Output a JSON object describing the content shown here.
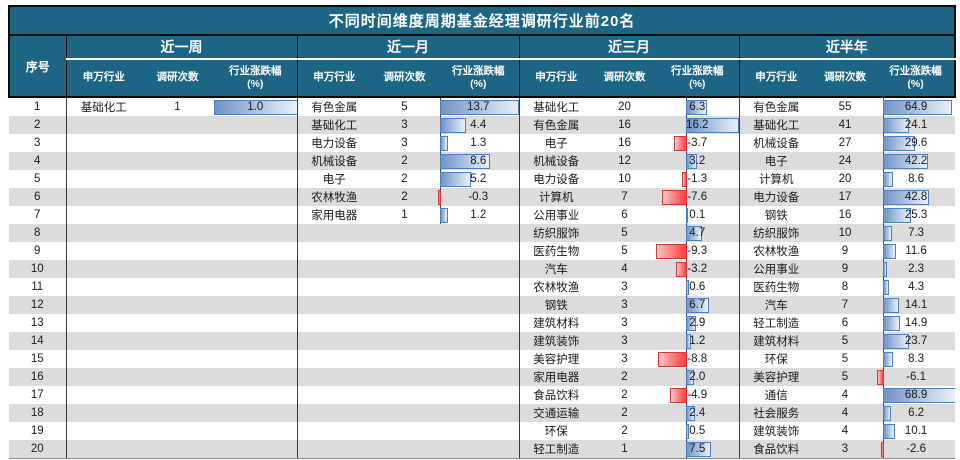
{
  "colors": {
    "header_bg": "#1C6585",
    "header_text": "#ffffff",
    "row_stripe": "#DCDCDC",
    "bar_positive_fill": "#7094C6",
    "bar_positive_border": "#4E7DC0",
    "bar_negative_fill": "#FF3A3A",
    "bar_negative_border": "#D03A3A",
    "body_text": "#1a1a1a"
  },
  "chart_data": {
    "type": "table",
    "title": "不同时间维度周期基金经理调研行业前20名",
    "index_header": "序号",
    "sub_headers": {
      "industry": "申万行业",
      "count": "调研次数",
      "change_line1": "行业涨跌幅",
      "change_line2": "(%)"
    },
    "row_count": 20,
    "row_numbers": [
      1,
      2,
      3,
      4,
      5,
      6,
      7,
      8,
      9,
      10,
      11,
      12,
      13,
      14,
      15,
      16,
      17,
      18,
      19,
      20
    ],
    "bar_axis_note": "Excel-style data bars; per-panel axis at -min/(max-min); blue=positive, red=negative",
    "panels": [
      {
        "period": "近一周",
        "rows": [
          [
            "基础化工",
            1,
            1.0
          ]
        ]
      },
      {
        "period": "近一月",
        "rows": [
          [
            "有色金属",
            5,
            13.7
          ],
          [
            "基础化工",
            3,
            4.4
          ],
          [
            "电力设备",
            3,
            1.3
          ],
          [
            "机械设备",
            2,
            8.6
          ],
          [
            "电子",
            2,
            5.2
          ],
          [
            "农林牧渔",
            2,
            -0.3
          ],
          [
            "家用电器",
            1,
            1.2
          ]
        ]
      },
      {
        "period": "近三月",
        "rows": [
          [
            "基础化工",
            20,
            6.3
          ],
          [
            "有色金属",
            16,
            16.2
          ],
          [
            "电子",
            16,
            -3.7
          ],
          [
            "机械设备",
            12,
            3.2
          ],
          [
            "电力设备",
            10,
            -1.3
          ],
          [
            "计算机",
            7,
            -7.6
          ],
          [
            "公用事业",
            6,
            0.1
          ],
          [
            "纺织服饰",
            5,
            4.7
          ],
          [
            "医药生物",
            5,
            -9.3
          ],
          [
            "汽车",
            4,
            -3.2
          ],
          [
            "农林牧渔",
            3,
            0.6
          ],
          [
            "钢铁",
            3,
            6.7
          ],
          [
            "建筑材料",
            3,
            2.9
          ],
          [
            "建筑装饰",
            3,
            1.2
          ],
          [
            "美容护理",
            3,
            -8.8
          ],
          [
            "家用电器",
            2,
            2.0
          ],
          [
            "食品饮料",
            2,
            -4.9
          ],
          [
            "交通运输",
            2,
            2.4
          ],
          [
            "环保",
            2,
            0.5
          ],
          [
            "轻工制造",
            1,
            7.5
          ]
        ]
      },
      {
        "period": "近半年",
        "rows": [
          [
            "有色金属",
            55,
            64.9
          ],
          [
            "基础化工",
            41,
            24.1
          ],
          [
            "机械设备",
            27,
            29.6
          ],
          [
            "电子",
            24,
            42.2
          ],
          [
            "计算机",
            20,
            8.6
          ],
          [
            "电力设备",
            17,
            42.8
          ],
          [
            "钢铁",
            16,
            25.3
          ],
          [
            "纺织服饰",
            10,
            7.3
          ],
          [
            "农林牧渔",
            9,
            11.6
          ],
          [
            "公用事业",
            9,
            2.3
          ],
          [
            "医药生物",
            8,
            4.3
          ],
          [
            "汽车",
            7,
            14.1
          ],
          [
            "轻工制造",
            6,
            14.9
          ],
          [
            "建筑材料",
            5,
            23.7
          ],
          [
            "环保",
            5,
            8.3
          ],
          [
            "美容护理",
            5,
            -6.1
          ],
          [
            "通信",
            4,
            68.9
          ],
          [
            "社会服务",
            4,
            6.2
          ],
          [
            "建筑装饰",
            4,
            10.1
          ],
          [
            "食品饮料",
            3,
            -2.6
          ]
        ]
      }
    ]
  }
}
